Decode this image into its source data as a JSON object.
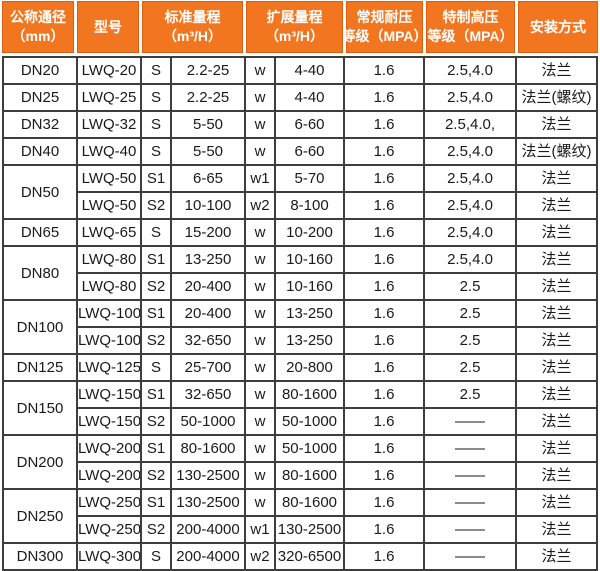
{
  "colors": {
    "accent_orange": "#F2761F",
    "header_inner_border": "#D65F15",
    "grid_border": "#3D3D3D",
    "header_text": "#FFFFFF",
    "body_text": "#1A1A1A"
  },
  "table": {
    "header": {
      "nominal_diameter": "公称通径\n（mm）",
      "model": "型号",
      "standard_range": "标准量程\n（m³/H）",
      "extended_range": "扩展量程\n（m³/H）",
      "pressure_rating": "常规耐压\n等级（MPA）",
      "high_pressure_rating": "特制高压\n等级（MPA）",
      "installation": "安装方式"
    },
    "rows": [
      {
        "dn": "DN20",
        "dn_rowspan": 1,
        "model": "LWQ-20",
        "std_code": "S",
        "std_range": "2.2-25",
        "ext_code": "w",
        "ext_range": "4-40",
        "pressure": "1.6",
        "high_pressure": "2.5,4.0",
        "install": "法兰"
      },
      {
        "dn": "DN25",
        "dn_rowspan": 1,
        "model": "LWQ-25",
        "std_code": "S",
        "std_range": "2.2-25",
        "ext_code": "w",
        "ext_range": "4-40",
        "pressure": "1.6",
        "high_pressure": "2.5,4.0",
        "install": "法兰(螺纹)"
      },
      {
        "dn": "DN32",
        "dn_rowspan": 1,
        "model": "LWQ-32",
        "std_code": "S",
        "std_range": "5-50",
        "ext_code": "w",
        "ext_range": "6-60",
        "pressure": "1.6",
        "high_pressure": "2.5,4.0,",
        "install": "法兰"
      },
      {
        "dn": "DN40",
        "dn_rowspan": 1,
        "model": "LWQ-40",
        "std_code": "S",
        "std_range": "5-50",
        "ext_code": "w",
        "ext_range": "6-60",
        "pressure": "1.6",
        "high_pressure": "2.5,4.0",
        "install": "法兰(螺纹)"
      },
      {
        "dn": "DN50",
        "dn_rowspan": 2,
        "model": "LWQ-50",
        "std_code": "S1",
        "std_range": "6-65",
        "ext_code": "w1",
        "ext_range": "5-70",
        "pressure": "1.6",
        "high_pressure": "2.5,4.0",
        "install": "法兰"
      },
      {
        "model": "LWQ-50",
        "std_code": "S2",
        "std_range": "10-100",
        "ext_code": "w2",
        "ext_range": "8-100",
        "pressure": "1.6",
        "high_pressure": "2.5,4.0",
        "install": "法兰"
      },
      {
        "dn": "DN65",
        "dn_rowspan": 1,
        "model": "LWQ-65",
        "std_code": "S",
        "std_range": "15-200",
        "ext_code": "w",
        "ext_range": "10-200",
        "pressure": "1.6",
        "high_pressure": "2.5,4.0",
        "install": "法兰"
      },
      {
        "dn": "DN80",
        "dn_rowspan": 2,
        "model": "LWQ-80",
        "std_code": "S1",
        "std_range": "13-250",
        "ext_code": "w",
        "ext_range": "10-160",
        "pressure": "1.6",
        "high_pressure": "2.5,4.0",
        "install": "法兰"
      },
      {
        "model": "LWQ-80",
        "std_code": "S2",
        "std_range": "20-400",
        "ext_code": "w",
        "ext_range": "10-160",
        "pressure": "1.6",
        "high_pressure": "2.5",
        "install": "法兰"
      },
      {
        "dn": "DN100",
        "dn_rowspan": 2,
        "model": "LWQ-100",
        "std_code": "S1",
        "std_range": "20-400",
        "ext_code": "w",
        "ext_range": "13-250",
        "pressure": "1.6",
        "high_pressure": "2.5",
        "install": "法兰"
      },
      {
        "model": "LWQ-100",
        "std_code": "S2",
        "std_range": "32-650",
        "ext_code": "w",
        "ext_range": "13-250",
        "pressure": "1.6",
        "high_pressure": "2.5",
        "install": "法兰"
      },
      {
        "dn": "DN125",
        "dn_rowspan": 1,
        "model": "LWQ-125",
        "std_code": "S",
        "std_range": "25-700",
        "ext_code": "w",
        "ext_range": "20-800",
        "pressure": "1.6",
        "high_pressure": "2.5",
        "install": "法兰"
      },
      {
        "dn": "DN150",
        "dn_rowspan": 2,
        "model": "LWQ-150",
        "std_code": "S1",
        "std_range": "32-650",
        "ext_code": "w",
        "ext_range": "80-1600",
        "pressure": "1.6",
        "high_pressure": "2.5",
        "install": "法兰"
      },
      {
        "model": "LWQ-150",
        "std_code": "S2",
        "std_range": "50-1000",
        "ext_code": "w",
        "ext_range": "50-1000",
        "pressure": "1.6",
        "high_pressure": "——",
        "install": "法兰"
      },
      {
        "dn": "DN200",
        "dn_rowspan": 2,
        "model": "LWQ-200",
        "std_code": "S1",
        "std_range": "80-1600",
        "ext_code": "w",
        "ext_range": "50-1000",
        "pressure": "1.6",
        "high_pressure": "——",
        "install": "法兰"
      },
      {
        "model": "LWQ-200",
        "std_code": "S2",
        "std_range": "130-2500",
        "ext_code": "w",
        "ext_range": "80-1600",
        "pressure": "1.6",
        "high_pressure": "——",
        "install": "法兰"
      },
      {
        "dn": "DN250",
        "dn_rowspan": 2,
        "model": "LWQ-250",
        "std_code": "S1",
        "std_range": "130-2500",
        "ext_code": "w",
        "ext_range": "80-1600",
        "pressure": "1.6",
        "high_pressure": "——",
        "install": "法兰"
      },
      {
        "model": "LWQ-250",
        "std_code": "S2",
        "std_range": "200-4000",
        "ext_code": "w1",
        "ext_range": "130-2500",
        "pressure": "1.6",
        "high_pressure": "——",
        "install": "法兰"
      },
      {
        "dn": "DN300",
        "dn_rowspan": 1,
        "model": "LWQ-300",
        "std_code": "S",
        "std_range": "200-4000",
        "ext_code": "w2",
        "ext_range": "320-6500",
        "pressure": "1.6",
        "high_pressure": "——",
        "install": "法兰"
      }
    ]
  }
}
